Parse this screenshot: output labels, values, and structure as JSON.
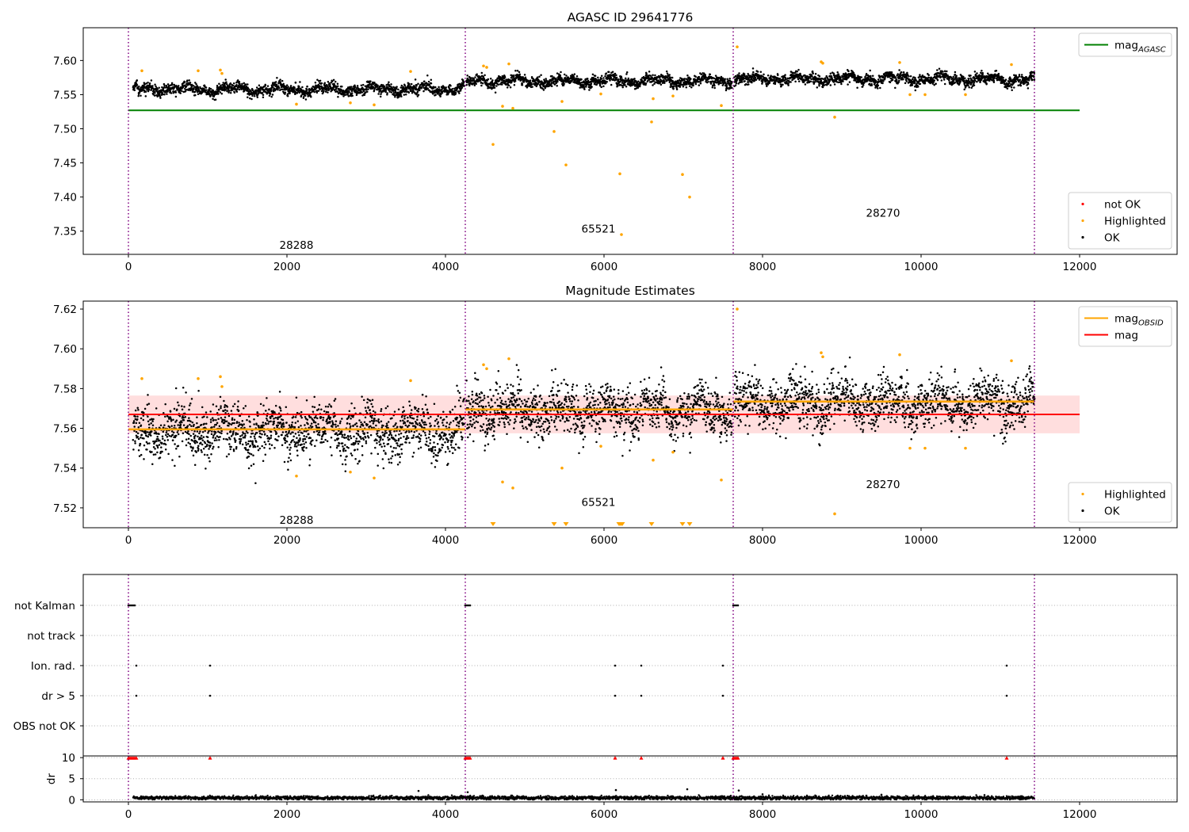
{
  "figure": {
    "title": "AGASC ID 29641776"
  },
  "chart_data": [
    {
      "id": "panel1",
      "type": "scatter",
      "title": "",
      "xlim": [
        -570,
        13230
      ],
      "ylim": [
        7.316,
        7.648
      ],
      "xticks": [
        0,
        2000,
        4000,
        6000,
        8000,
        10000,
        12000
      ],
      "yticks": [
        7.35,
        7.4,
        7.45,
        7.5,
        7.55,
        7.6
      ],
      "ytick_decimals": 2,
      "obsid_boundaries": [
        0,
        4250,
        7630,
        11430
      ],
      "obsid_labels": [
        {
          "text": "28288",
          "x": 2120,
          "y": 7.33
        },
        {
          "text": "65521",
          "x": 5930,
          "y": 7.354
        },
        {
          "text": "28270",
          "x": 9520,
          "y": 7.377
        }
      ],
      "obsid_levels": [
        7.558,
        7.57,
        7.573
      ],
      "noise_sd": 0.0072,
      "hlines": [
        {
          "name": "mag_AGASC",
          "y": 7.527,
          "x0": 0,
          "x1": 12000,
          "color": "#008000"
        }
      ],
      "highlighted": [
        [
          170,
          7.585
        ],
        [
          880,
          7.585
        ],
        [
          1160,
          7.586
        ],
        [
          1180,
          7.581
        ],
        [
          2120,
          7.536
        ],
        [
          2800,
          7.538
        ],
        [
          3100,
          7.535
        ],
        [
          3560,
          7.584
        ],
        [
          4480,
          7.592
        ],
        [
          4520,
          7.59
        ],
        [
          4600,
          7.477
        ],
        [
          4720,
          7.533
        ],
        [
          4800,
          7.595
        ],
        [
          4850,
          7.53
        ],
        [
          5370,
          7.496
        ],
        [
          5470,
          7.54
        ],
        [
          5520,
          7.447
        ],
        [
          5960,
          7.551
        ],
        [
          6200,
          7.434
        ],
        [
          6220,
          7.345
        ],
        [
          6600,
          7.51
        ],
        [
          6620,
          7.544
        ],
        [
          6870,
          7.548
        ],
        [
          6990,
          7.433
        ],
        [
          7080,
          7.4
        ],
        [
          7480,
          7.534
        ],
        [
          7680,
          7.62
        ],
        [
          8740,
          7.598
        ],
        [
          8760,
          7.596
        ],
        [
          8910,
          7.517
        ],
        [
          9730,
          7.597
        ],
        [
          9860,
          7.55
        ],
        [
          10050,
          7.55
        ],
        [
          10560,
          7.55
        ],
        [
          11140,
          7.594
        ]
      ],
      "legends": [
        {
          "position": "upper right",
          "entries": [
            {
              "label": "mag",
              "sub": "AGASC",
              "kind": "line",
              "color": "#008000"
            }
          ]
        },
        {
          "position": "lower right",
          "entries": [
            {
              "label": "not OK",
              "kind": "dot",
              "color": "#ff0000"
            },
            {
              "label": "Highlighted",
              "kind": "dot",
              "color": "#ffa500"
            },
            {
              "label": "OK",
              "kind": "dot",
              "color": "#000000"
            }
          ]
        }
      ]
    },
    {
      "id": "panel2",
      "type": "scatter",
      "title": "Magnitude Estimates",
      "xlim": [
        -570,
        13230
      ],
      "ylim": [
        7.51,
        7.624
      ],
      "xticks": [
        0,
        2000,
        4000,
        6000,
        8000,
        10000,
        12000
      ],
      "yticks": [
        7.52,
        7.54,
        7.56,
        7.58,
        7.6,
        7.62
      ],
      "ytick_decimals": 2,
      "obsid_boundaries": [
        0,
        4250,
        7630,
        11430
      ],
      "obsid_labels": [
        {
          "text": "28288",
          "x": 2120,
          "y": 7.514
        },
        {
          "text": "65521",
          "x": 5930,
          "y": 7.523
        },
        {
          "text": "28270",
          "x": 9520,
          "y": 7.532
        }
      ],
      "obsid_levels": [
        7.559,
        7.569,
        7.573
      ],
      "noise_sd": 0.0072,
      "band": {
        "x0": 0,
        "x1": 12000,
        "y0": 7.5575,
        "y1": 7.5765,
        "color": "#ffcccc"
      },
      "hlines": [
        {
          "name": "mag",
          "y": 7.567,
          "x0": 0,
          "x1": 12000,
          "color": "#ff0000"
        }
      ],
      "obsid_mags": [
        {
          "x0": 0,
          "x1": 4250,
          "y": 7.5595
        },
        {
          "x0": 4250,
          "x1": 7630,
          "y": 7.5695
        },
        {
          "x0": 7630,
          "x1": 11430,
          "y": 7.5735
        }
      ],
      "highlighted": [
        [
          170,
          7.585
        ],
        [
          880,
          7.585
        ],
        [
          1160,
          7.586
        ],
        [
          1180,
          7.581
        ],
        [
          2120,
          7.536
        ],
        [
          2800,
          7.538
        ],
        [
          3100,
          7.535
        ],
        [
          3560,
          7.584
        ],
        [
          4480,
          7.592
        ],
        [
          4520,
          7.59
        ],
        [
          4720,
          7.533
        ],
        [
          4800,
          7.595
        ],
        [
          4850,
          7.53
        ],
        [
          5470,
          7.54
        ],
        [
          5960,
          7.551
        ],
        [
          6620,
          7.544
        ],
        [
          6870,
          7.548
        ],
        [
          7480,
          7.534
        ],
        [
          7680,
          7.62
        ],
        [
          8740,
          7.598
        ],
        [
          8760,
          7.596
        ],
        [
          8910,
          7.517
        ],
        [
          9730,
          7.597
        ],
        [
          9860,
          7.55
        ],
        [
          10050,
          7.55
        ],
        [
          10560,
          7.55
        ],
        [
          11140,
          7.594
        ]
      ],
      "out_of_range_below": [
        4600,
        5370,
        5520,
        6190,
        6210,
        6230,
        6600,
        6990,
        7080
      ],
      "legends": [
        {
          "position": "upper right",
          "entries": [
            {
              "label": "mag",
              "sub": "OBSID",
              "kind": "line",
              "color": "#ffa500"
            },
            {
              "label": "mag",
              "kind": "line",
              "color": "#ff0000"
            }
          ]
        },
        {
          "position": "lower right",
          "entries": [
            {
              "label": "Highlighted",
              "kind": "dot",
              "color": "#ffa500"
            },
            {
              "label": "OK",
              "kind": "dot",
              "color": "#000000"
            }
          ]
        }
      ]
    },
    {
      "id": "panel3",
      "type": "scatter",
      "title": "",
      "xlim": [
        -570,
        13230
      ],
      "obsid_boundaries": [
        0,
        4250,
        7630,
        11430
      ],
      "flag_rows": [
        "not Kalman",
        "not track",
        "Ion. rad.",
        "dr > 5",
        "OBS not OK"
      ],
      "flag_points": {
        "not Kalman": [
          0,
          20,
          40,
          60,
          80,
          4250,
          4270,
          4290,
          4310,
          7630,
          7650,
          7670,
          7690
        ],
        "not track": [],
        "Ion. rad.": [
          100,
          1030,
          6140,
          6470,
          7500,
          11080
        ],
        "dr > 5": [
          100,
          1030,
          6140,
          6470,
          7500,
          11080
        ],
        "OBS not OK": []
      },
      "dr": {
        "ylabel": "dr",
        "ylim": [
          -0.5,
          10.4
        ],
        "yticks": [
          0,
          5,
          10
        ],
        "clip_value": 10,
        "base_level": 0.45,
        "clipped_x": [
          0,
          20,
          40,
          60,
          80,
          100,
          1030,
          4250,
          4270,
          4290,
          4310,
          6140,
          6470,
          7500,
          7630,
          7650,
          7670,
          7690,
          11080
        ],
        "spikes": [
          [
            3660,
            2.1
          ],
          [
            4280,
            1.8
          ],
          [
            6150,
            2.3
          ],
          [
            7050,
            2.5
          ],
          [
            7700,
            2.2
          ],
          [
            8000,
            1.3
          ],
          [
            9500,
            1.2
          ],
          [
            10800,
            1.1
          ]
        ]
      }
    }
  ]
}
